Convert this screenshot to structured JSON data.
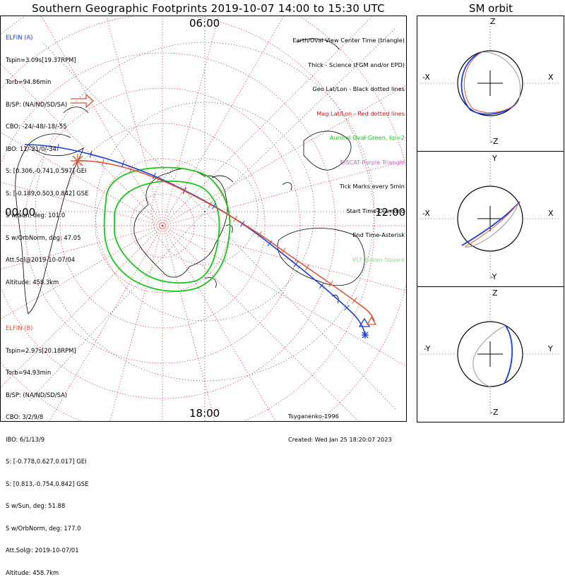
{
  "title": "Southern Geographic Footprints 2019-10-07 14:00 to 15:30 UTC",
  "sm_title": "SM orbit",
  "hour_labels": {
    "top": "06:00",
    "left": "00:00",
    "right": "12:00",
    "bottom": "18:00"
  },
  "elfin_a": {
    "header": "ELFIN (A)",
    "lines": [
      "Tspin=3.09s[19.37RPM]",
      "Torb=94.86min",
      "B/SP: (NA/ND/SD/SA)",
      "CBO: -24/-48/-18/-55",
      "IBO: 11/-21/0/-34",
      "S: [0.306,-0.741,0.597] GEI",
      "S: [-0.189,0.503,0.842] GSE",
      "S w/Sun, deg: 101.0",
      "S w/OrbNorm, deg: 47.05",
      "Att.Sol@2019-10-07/04",
      "Altitude: 458.3km"
    ],
    "color": "#1a3fd6"
  },
  "elfin_b": {
    "header": "ELFIN (B)",
    "lines": [
      "Tspin=2.97s[20.18RPM]",
      "Torb=94.93min",
      "B/SP: (NA/ND/SD/SA)",
      "CBO: 3/2/9/8",
      "IBO: 6/1/13/9",
      "S: [-0.778,0.627,0.017] GEI",
      "S: [0.813,-0.754,0.842] GSE",
      "S w/Sun, deg: 51.88",
      "S w/OrbNorm, deg: 177.0",
      "Att.Sol@: 2019-10-07/01",
      "Altitude: 458.7km"
    ],
    "color": "#e0553a"
  },
  "legend": [
    {
      "text": "Earth/Oval View Center Time (triangle)",
      "color": "#000000"
    },
    {
      "text": "Thick - Science (FGM and/or EPD)",
      "color": "#000000"
    },
    {
      "text": "Geo Lat/Lon - Black dotted lines",
      "color": "#000000"
    },
    {
      "text": "Mag Lat/Lon - Red dotted lines",
      "color": "#e0101a"
    },
    {
      "text": "Auroral Oval-Green, kp=2",
      "color": "#19c81a"
    },
    {
      "text": "EISCAT-Purple Triangle",
      "color": "#c75bd6"
    },
    {
      "text": "Tick Marks every 5min",
      "color": "#000000"
    },
    {
      "text": "Start Time-Diamond",
      "color": "#000000"
    },
    {
      "text": "End Time-Asterisk",
      "color": "#000000"
    },
    {
      "text": "VLF-Green Square",
      "color": "#8fe08a"
    }
  ],
  "credit": {
    "author": "Tsyganenko-1996",
    "created": "Created: Wed Jan 25 18:20:07 2023"
  },
  "sm_panels": [
    {
      "top": "Z",
      "bottom": "-Z",
      "left": "-X",
      "right": "X"
    },
    {
      "top": "Y",
      "bottom": "-Y",
      "left": "-X",
      "right": "X"
    },
    {
      "top": "Z",
      "bottom": "-Z",
      "left": "-Y",
      "right": "Y"
    }
  ],
  "colors": {
    "elfin_a": "#1a3fd6",
    "elfin_b": "#e0553a",
    "mag_grid": "#e0101a",
    "aurora": "#19c81a"
  },
  "chart_data": {
    "type": "scatter",
    "title": "Southern Geographic Footprints 2019-10-07 14:00 to 15:30 UTC",
    "series": [
      {
        "name": "ELFIN (A)",
        "color": "#1a3fd6"
      },
      {
        "name": "ELFIN (B)",
        "color": "#e0553a"
      }
    ],
    "projection": "south polar stereographic, magnetic local time labels",
    "grid": true
  }
}
